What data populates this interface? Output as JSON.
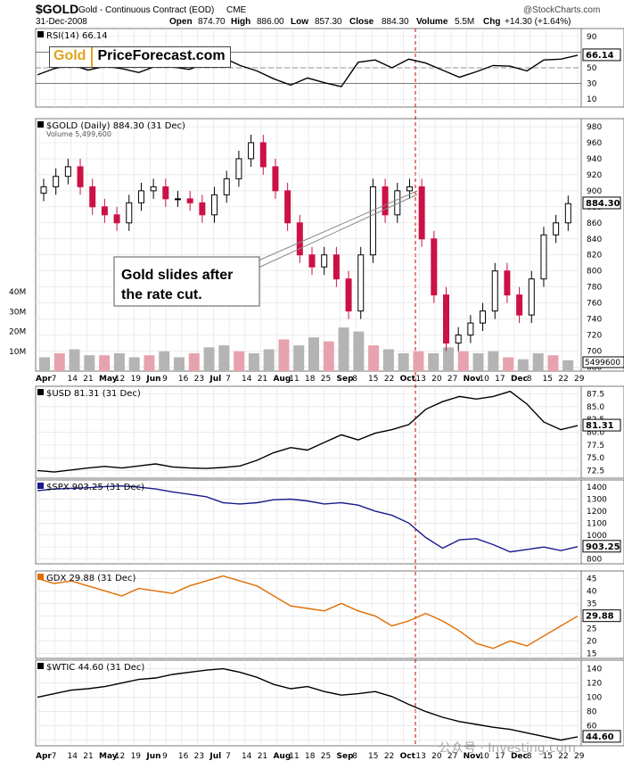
{
  "header": {
    "symbol": "$GOLD",
    "description": "Gold - Continuous Contract (EOD)",
    "exchange": "CME",
    "date": "31-Dec-2008",
    "copyright": "@StockCharts.com",
    "open_label": "Open",
    "open": "874.70",
    "high_label": "High",
    "high": "886.00",
    "low_label": "Low",
    "low": "857.30",
    "close_label": "Close",
    "close": "884.30",
    "volume_label": "Volume",
    "volume": "5.5M",
    "chg_label": "Chg",
    "chg": "+14.30 (+1.64%)"
  },
  "logo": {
    "gold": "Gold",
    "brand": "PriceForecast.com"
  },
  "watermark": "公众号 · Investing.com",
  "colors": {
    "up": "#000000",
    "down": "#cc1144",
    "vol_up": "#b4b4b4",
    "vol_down": "#e7a3ad",
    "rsi": "#000000",
    "usd": "#000000",
    "spx": "#1a1a8c",
    "gdx": "#e06c00",
    "wtic": "#000000",
    "event_line": "#cc0000",
    "grid": "#e4e4e4"
  },
  "chart_data": [
    {
      "type": "line",
      "title": "RSI(14) 66.14",
      "last_value": 66.14,
      "y_ticks": [
        10,
        30,
        50,
        70,
        90
      ],
      "ylim": [
        0,
        100
      ],
      "x": [
        "Apr",
        "Apr 14",
        "Apr 21",
        "May",
        "May 12",
        "May 19",
        "Jun",
        "Jun 9",
        "Jun 16",
        "Jun 23",
        "Jul",
        "Jul 14",
        "Jul 21",
        "Aug",
        "Aug 11",
        "Aug 18",
        "Aug 25",
        "Sep",
        "Sep 8",
        "Sep 15",
        "Sep 22",
        "Oct",
        "Oct 13",
        "Oct 20",
        "Oct 27",
        "Nov",
        "Nov 10",
        "Nov 17",
        "Dec",
        "Dec 8",
        "Dec 15",
        "Dec 22",
        "Dec 29"
      ],
      "series": [
        {
          "values": [
            41,
            49,
            54,
            47,
            52,
            49,
            44,
            52,
            51,
            48,
            56,
            63,
            53,
            46,
            36,
            28,
            37,
            31,
            26,
            57,
            60,
            50,
            61,
            56,
            47,
            38,
            45,
            53,
            52,
            46,
            60,
            61,
            66
          ]
        }
      ]
    },
    {
      "type": "candlestick",
      "title": "$GOLD (Daily) 884.30 (31 Dec)",
      "volume_label": "Volume 5,499,600",
      "last_value": 884.3,
      "volume_last": 5499600,
      "y_ticks": [
        680,
        700,
        720,
        740,
        760,
        780,
        800,
        820,
        840,
        860,
        880,
        900,
        920,
        940,
        960,
        980
      ],
      "ylim": [
        675,
        990
      ],
      "volume_ticks": [
        "10M",
        "20M",
        "30M",
        "40M"
      ],
      "x_labels": [
        "Apr",
        "7",
        "14",
        "21",
        "May",
        "12",
        "19",
        "Jun",
        "9",
        "16",
        "23",
        "Jul",
        "7",
        "14",
        "21",
        "Aug",
        "11",
        "18",
        "25",
        "Sep",
        "8",
        "15",
        "22",
        "Oct",
        "13",
        "20",
        "27",
        "Nov",
        "10",
        "17",
        "Dec",
        "8",
        "15",
        "22",
        "29"
      ],
      "closes": [
        905,
        918,
        930,
        905,
        880,
        870,
        860,
        885,
        900,
        905,
        890,
        890,
        885,
        870,
        895,
        915,
        940,
        960,
        930,
        900,
        860,
        820,
        805,
        820,
        790,
        750,
        820,
        905,
        870,
        900,
        905,
        840,
        770,
        710,
        720,
        735,
        750,
        800,
        770,
        745,
        790,
        845,
        860,
        884
      ],
      "volumes_m": [
        7,
        9,
        11,
        8,
        8,
        9,
        7,
        8,
        10,
        7,
        9,
        12,
        13,
        10,
        9,
        11,
        16,
        13,
        17,
        15,
        22,
        20,
        13,
        11,
        9,
        10,
        9,
        12,
        10,
        9,
        10,
        7,
        6,
        9,
        8,
        5.5
      ]
    },
    {
      "type": "line",
      "title": "$USD 81.31 (31 Dec)",
      "last_value": 81.31,
      "y_ticks": [
        72.5,
        75.0,
        77.5,
        80.0,
        82.5,
        85.0,
        87.5
      ],
      "ylim": [
        71,
        89
      ],
      "series": [
        {
          "values": [
            72.5,
            72.2,
            72.6,
            73.0,
            73.3,
            73.0,
            73.4,
            73.8,
            73.2,
            73.0,
            72.9,
            73.1,
            73.4,
            74.5,
            76.0,
            77.0,
            76.5,
            78.0,
            79.5,
            78.5,
            79.8,
            80.5,
            81.5,
            84.5,
            86.0,
            87.0,
            86.5,
            87.0,
            88.0,
            85.5,
            82.0,
            80.5,
            81.3
          ]
        }
      ]
    },
    {
      "type": "line",
      "title": "$SPX 903.25 (31 Dec)",
      "last_value": 903.25,
      "y_ticks": [
        800,
        900,
        1000,
        1100,
        1200,
        1300,
        1400
      ],
      "ylim": [
        760,
        1460
      ],
      "series": [
        {
          "values": [
            1370,
            1385,
            1390,
            1395,
            1405,
            1410,
            1400,
            1385,
            1360,
            1340,
            1320,
            1270,
            1260,
            1270,
            1295,
            1300,
            1285,
            1260,
            1270,
            1250,
            1200,
            1165,
            1100,
            980,
            890,
            960,
            970,
            920,
            860,
            880,
            900,
            870,
            903
          ]
        }
      ]
    },
    {
      "type": "line",
      "title": "GDX 29.88 (31 Dec)",
      "last_value": 29.88,
      "y_ticks": [
        15,
        20,
        25,
        30,
        35,
        40,
        45
      ],
      "ylim": [
        13,
        48
      ],
      "series": [
        {
          "values": [
            45,
            43,
            44,
            42,
            40,
            38,
            41,
            40,
            39,
            42,
            44,
            46,
            44,
            42,
            38,
            34,
            33,
            32,
            35,
            32,
            30,
            26,
            28,
            31,
            28,
            24,
            19,
            17,
            20,
            18,
            22,
            26,
            29.9
          ]
        }
      ]
    },
    {
      "type": "line",
      "title": "$WTIC 44.60 (31 Dec)",
      "last_value": 44.6,
      "y_ticks": [
        40,
        60,
        80,
        100,
        120,
        140
      ],
      "ylim": [
        32,
        152
      ],
      "series": [
        {
          "values": [
            100,
            105,
            110,
            112,
            115,
            120,
            125,
            127,
            132,
            135,
            138,
            140,
            135,
            128,
            118,
            112,
            115,
            108,
            103,
            105,
            108,
            101,
            90,
            80,
            72,
            66,
            62,
            58,
            55,
            50,
            45,
            40,
            44.6
          ]
        }
      ]
    }
  ],
  "annotation": {
    "line1": "Gold slides after",
    "line2": "the rate cut."
  }
}
